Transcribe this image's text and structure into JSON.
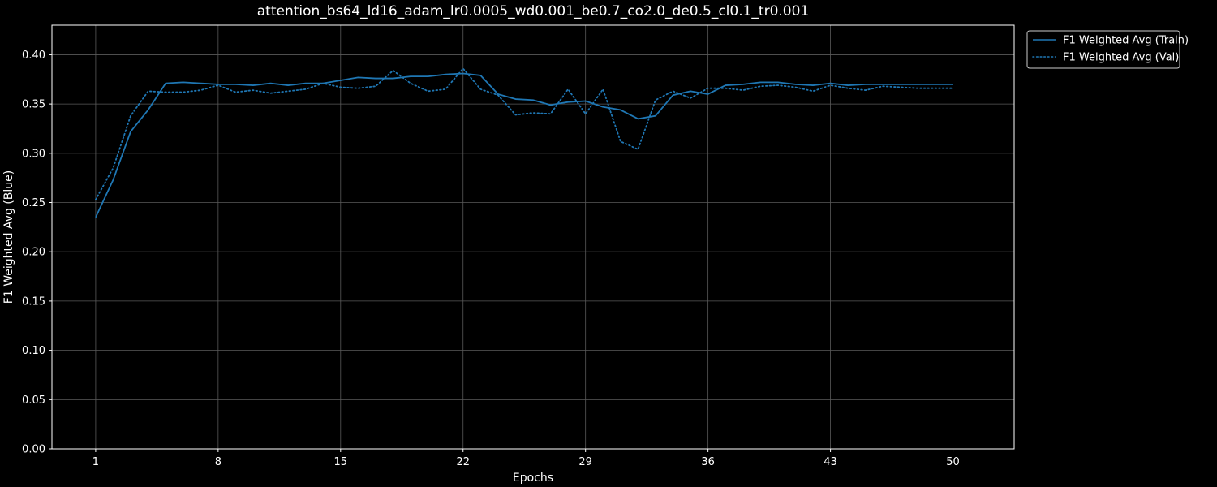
{
  "chart_data": {
    "type": "line",
    "title": "attention_bs64_ld16_adam_lr0.0005_wd0.001_be0.7_co2.0_de0.5_cl0.1_tr0.001",
    "xlabel": "Epochs",
    "ylabel": "F1 Weighted Avg (Blue)",
    "xlim": [
      -1.5,
      53.5
    ],
    "ylim": [
      0.0,
      0.43
    ],
    "xticks": [
      1,
      8,
      15,
      22,
      29,
      36,
      43,
      50
    ],
    "yticks": [
      "0.00",
      "0.05",
      "0.10",
      "0.15",
      "0.20",
      "0.25",
      "0.30",
      "0.35",
      "0.40"
    ],
    "grid": true,
    "legend_position": "upper right, outside plot",
    "colors": {
      "line": "#1f77b4",
      "background": "#000000",
      "foreground": "#ffffff",
      "grid": "#5a5a5a"
    },
    "x": [
      1,
      2,
      3,
      4,
      5,
      6,
      7,
      8,
      9,
      10,
      11,
      12,
      13,
      14,
      15,
      16,
      17,
      18,
      19,
      20,
      21,
      22,
      23,
      24,
      25,
      26,
      27,
      28,
      29,
      30,
      31,
      32,
      33,
      34,
      35,
      36,
      37,
      38,
      39,
      40,
      41,
      42,
      43,
      44,
      45,
      46,
      47,
      48,
      49,
      50
    ],
    "series": [
      {
        "name": "F1 Weighted Avg (Train)",
        "style": "solid",
        "values": [
          0.235,
          0.273,
          0.322,
          0.344,
          0.371,
          0.372,
          0.371,
          0.37,
          0.37,
          0.369,
          0.371,
          0.369,
          0.371,
          0.371,
          0.374,
          0.377,
          0.376,
          0.376,
          0.378,
          0.378,
          0.38,
          0.381,
          0.379,
          0.36,
          0.355,
          0.354,
          0.349,
          0.352,
          0.353,
          0.347,
          0.344,
          0.335,
          0.338,
          0.359,
          0.363,
          0.36,
          0.369,
          0.37,
          0.372,
          0.372,
          0.37,
          0.369,
          0.371,
          0.369,
          0.37,
          0.37,
          0.37,
          0.37,
          0.37,
          0.37
        ]
      },
      {
        "name": "F1 Weighted Avg (Val)",
        "style": "dotted",
        "values": [
          0.253,
          0.285,
          0.338,
          0.363,
          0.362,
          0.362,
          0.364,
          0.369,
          0.362,
          0.364,
          0.361,
          0.363,
          0.365,
          0.371,
          0.367,
          0.366,
          0.368,
          0.384,
          0.371,
          0.363,
          0.365,
          0.386,
          0.365,
          0.359,
          0.339,
          0.341,
          0.34,
          0.365,
          0.34,
          0.365,
          0.312,
          0.304,
          0.354,
          0.363,
          0.356,
          0.366,
          0.366,
          0.364,
          0.368,
          0.369,
          0.367,
          0.363,
          0.369,
          0.366,
          0.364,
          0.368,
          0.367,
          0.366,
          0.366,
          0.366
        ]
      }
    ]
  }
}
